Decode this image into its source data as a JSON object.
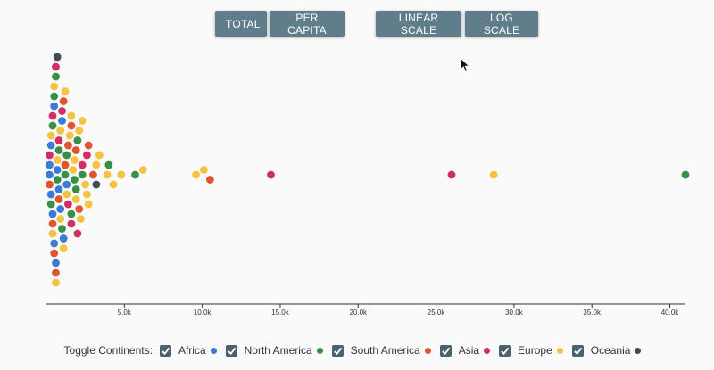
{
  "controls": {
    "buttons": [
      {
        "id": "total",
        "label": "TOTAL"
      },
      {
        "id": "per-capita",
        "label": "PER CAPITA"
      },
      {
        "id": "linear",
        "label": "LINEAR SCALE"
      },
      {
        "id": "log",
        "label": "LOG SCALE"
      }
    ]
  },
  "legend": {
    "title": "Toggle Continents:",
    "items": [
      {
        "label": "Africa",
        "color": "#3a7bd5",
        "checked": true
      },
      {
        "label": "North America",
        "color": "#3a8f46",
        "checked": true
      },
      {
        "label": "South America",
        "color": "#e0542f",
        "checked": true
      },
      {
        "label": "Asia",
        "color": "#d12e63",
        "checked": true
      },
      {
        "label": "Europe",
        "color": "#f5c242",
        "checked": true
      },
      {
        "label": "Oceania",
        "color": "#3f4e56",
        "checked": true
      }
    ]
  },
  "chart_data": {
    "type": "scatter",
    "title": "",
    "xlabel": "",
    "ylabel": "",
    "xlim": [
      0,
      41000
    ],
    "x_ticks": [
      5000,
      10000,
      15000,
      20000,
      25000,
      30000,
      35000,
      40000
    ],
    "x_tick_labels": [
      "5.0k",
      "10.0k",
      "15.0k",
      "20.0k",
      "25.0k",
      "30.0k",
      "35.0k",
      "40.0k"
    ],
    "grid": false,
    "series": [
      {
        "name": "Africa",
        "color": "#3a7bd5",
        "x": [
          200,
          500,
          300,
          1000,
          600,
          500,
          200,
          800,
          400,
          1100,
          700,
          1300,
          300,
          900
        ]
      },
      {
        "name": "North America",
        "color": "#3a8f46",
        "x": [
          400,
          1800,
          5700,
          4000,
          1000,
          1600,
          500,
          2300,
          1200,
          300,
          1900,
          800,
          700,
          2000,
          41000,
          1300,
          600
        ]
      },
      {
        "name": "South America",
        "color": "#e0542f",
        "x": [
          10500,
          3000,
          2100,
          1200,
          1600,
          500,
          800,
          2700,
          1400,
          200,
          1900,
          600,
          400,
          1100
        ]
      },
      {
        "name": "Asia",
        "color": "#d12e63",
        "x": [
          14400,
          26000,
          2600,
          1400,
          400,
          800,
          2000,
          1000,
          200,
          1600,
          2300,
          600
        ]
      },
      {
        "name": "Europe",
        "color": "#f5c242",
        "x": [
          28700,
          10100,
          9600,
          6200,
          4800,
          4300,
          3200,
          2700,
          2300,
          3900,
          1800,
          1300,
          900,
          700,
          500,
          1100,
          1500,
          2100,
          2500,
          3400,
          1700,
          1200,
          600,
          900,
          400,
          1600,
          1900,
          2200,
          2600,
          300
        ]
      },
      {
        "name": "Oceania",
        "color": "#3f4e56",
        "x": [
          3200,
          700
        ]
      }
    ]
  }
}
